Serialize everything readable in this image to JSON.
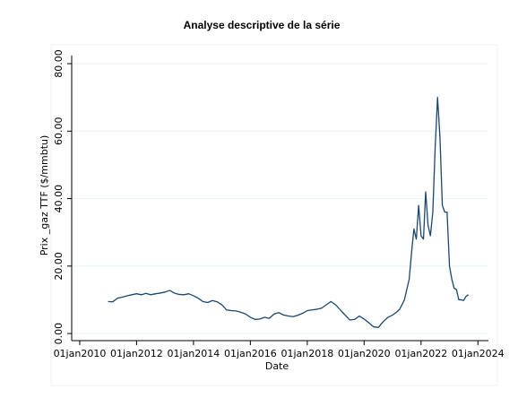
{
  "chart_data": {
    "type": "line",
    "title": "Analyse descriptive de la série",
    "x_label": "Date",
    "y_label": "Prix _gaz TTF ($/mmbtu)",
    "color": "#1a476f",
    "grid": true,
    "xlim": [
      "2009-09-20",
      "2024-05-15"
    ],
    "ylim": [
      -2.1,
      82.4
    ],
    "xticks": [
      {
        "value": "2010-01-01",
        "label": "01jan2010"
      },
      {
        "value": "2012-01-01",
        "label": "01jan2012"
      },
      {
        "value": "2014-01-01",
        "label": "01jan2014"
      },
      {
        "value": "2016-01-01",
        "label": "01jan2016"
      },
      {
        "value": "2018-01-01",
        "label": "01jan2018"
      },
      {
        "value": "2020-01-01",
        "label": "01jan2020"
      },
      {
        "value": "2022-01-01",
        "label": "01jan2022"
      },
      {
        "value": "2024-01-01",
        "label": "01jan2024"
      }
    ],
    "yticks": [
      {
        "value": 0,
        "label": "0.00"
      },
      {
        "value": 20,
        "label": "20.00"
      },
      {
        "value": 40,
        "label": "40.00"
      },
      {
        "value": 60,
        "label": "60.00"
      },
      {
        "value": 80,
        "label": "80.00"
      }
    ],
    "x": [
      "2011-01",
      "2011-03",
      "2011-05",
      "2011-07",
      "2011-09",
      "2011-11",
      "2012-01",
      "2012-03",
      "2012-05",
      "2012-07",
      "2012-09",
      "2012-11",
      "2013-01",
      "2013-03",
      "2013-05",
      "2013-07",
      "2013-09",
      "2013-11",
      "2014-01",
      "2014-03",
      "2014-05",
      "2014-07",
      "2014-09",
      "2014-11",
      "2015-01",
      "2015-03",
      "2015-05",
      "2015-07",
      "2015-09",
      "2015-11",
      "2016-01",
      "2016-03",
      "2016-05",
      "2016-07",
      "2016-09",
      "2016-11",
      "2017-01",
      "2017-03",
      "2017-05",
      "2017-07",
      "2017-09",
      "2017-11",
      "2018-01",
      "2018-03",
      "2018-05",
      "2018-07",
      "2018-09",
      "2018-11",
      "2019-01",
      "2019-03",
      "2019-05",
      "2019-07",
      "2019-09",
      "2019-11",
      "2020-01",
      "2020-03",
      "2020-05",
      "2020-07",
      "2020-09",
      "2020-11",
      "2021-01",
      "2021-02",
      "2021-03",
      "2021-04",
      "2021-05",
      "2021-06",
      "2021-07",
      "2021-08",
      "2021-09",
      "2021-10",
      "2021-11",
      "2021-12",
      "2022-01",
      "2022-02",
      "2022-03",
      "2022-04",
      "2022-05",
      "2022-06",
      "2022-07",
      "2022-08",
      "2022-09",
      "2022-10",
      "2022-11",
      "2022-12",
      "2023-01",
      "2023-02",
      "2023-03",
      "2023-04",
      "2023-05",
      "2023-06",
      "2023-07",
      "2023-08",
      "2023-09"
    ],
    "values": [
      9.5,
      9.4,
      10.5,
      10.8,
      11.2,
      11.5,
      11.8,
      11.5,
      11.9,
      11.5,
      11.8,
      12.0,
      12.3,
      12.8,
      12.0,
      11.6,
      11.5,
      11.8,
      11.2,
      10.5,
      9.5,
      9.2,
      9.8,
      9.4,
      8.5,
      7.0,
      6.8,
      6.7,
      6.3,
      5.8,
      4.8,
      4.2,
      4.3,
      4.8,
      4.5,
      5.8,
      6.2,
      5.5,
      5.2,
      5.0,
      5.4,
      6.0,
      6.8,
      7.0,
      7.2,
      7.5,
      8.5,
      9.5,
      8.5,
      7.0,
      5.5,
      4.0,
      4.2,
      5.2,
      4.3,
      3.2,
      2.0,
      1.8,
      3.5,
      4.8,
      5.5,
      6.0,
      6.5,
      7.2,
      8.5,
      10,
      13,
      16,
      24,
      31,
      28,
      38,
      29,
      28,
      42,
      32,
      29,
      36,
      55,
      70,
      58,
      38,
      36,
      36,
      20,
      16,
      13.5,
      13,
      10,
      10,
      9.8,
      11,
      11.5
    ]
  }
}
